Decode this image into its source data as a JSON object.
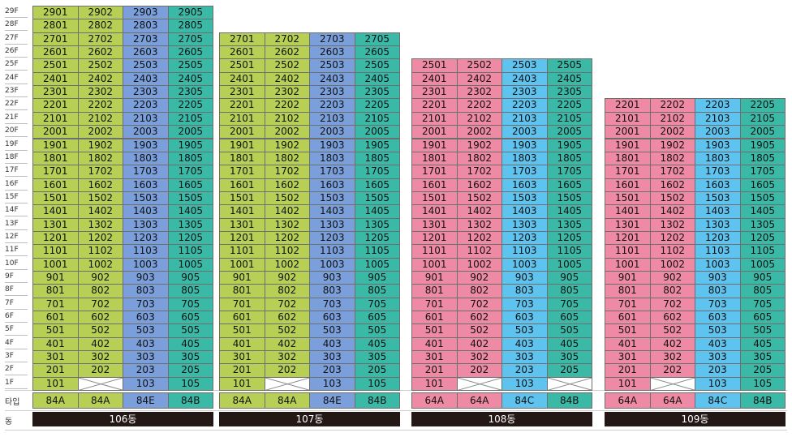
{
  "floors": [
    "29F",
    "28F",
    "27F",
    "26F",
    "25F",
    "24F",
    "23F",
    "22F",
    "21F",
    "20F",
    "19F",
    "18F",
    "17F",
    "16F",
    "15F",
    "14F",
    "13F",
    "12F",
    "11F",
    "10F",
    "9F",
    "8F",
    "7F",
    "6F",
    "5F",
    "4F",
    "3F",
    "2F",
    "1F"
  ],
  "row_labels": {
    "type": "타입",
    "building": "동"
  },
  "colors": {
    "green": "#b6cf54",
    "blue": "#7a9fdb",
    "teal": "#3bb9a7",
    "pink": "#ee8aa3",
    "cyan": "#5ec3ee",
    "bar": "#231816"
  },
  "buildings": [
    {
      "name": "106동",
      "top_floor": 29,
      "lines": [
        "01",
        "02",
        "03",
        "05"
      ],
      "colors": [
        "green",
        "green",
        "blue",
        "teal"
      ],
      "types": [
        "84A",
        "84A",
        "84E",
        "84B"
      ],
      "empty_first_floor": [
        "02"
      ]
    },
    {
      "name": "107동",
      "top_floor": 27,
      "lines": [
        "01",
        "02",
        "03",
        "05"
      ],
      "colors": [
        "green",
        "green",
        "blue",
        "teal"
      ],
      "types": [
        "84A",
        "84A",
        "84E",
        "84B"
      ],
      "empty_first_floor": [
        "02"
      ]
    },
    {
      "name": "108동",
      "top_floor": 25,
      "lines": [
        "01",
        "02",
        "03",
        "05"
      ],
      "colors": [
        "pink",
        "pink",
        "cyan",
        "teal"
      ],
      "types": [
        "64A",
        "64A",
        "84C",
        "84B"
      ],
      "empty_first_floor": [
        "02",
        "05"
      ]
    },
    {
      "name": "109동",
      "top_floor": 22,
      "lines": [
        "01",
        "02",
        "03",
        "05"
      ],
      "colors": [
        "pink",
        "pink",
        "cyan",
        "teal"
      ],
      "types": [
        "64A",
        "64A",
        "84C",
        "84B"
      ],
      "empty_first_floor": [
        "02"
      ]
    }
  ]
}
